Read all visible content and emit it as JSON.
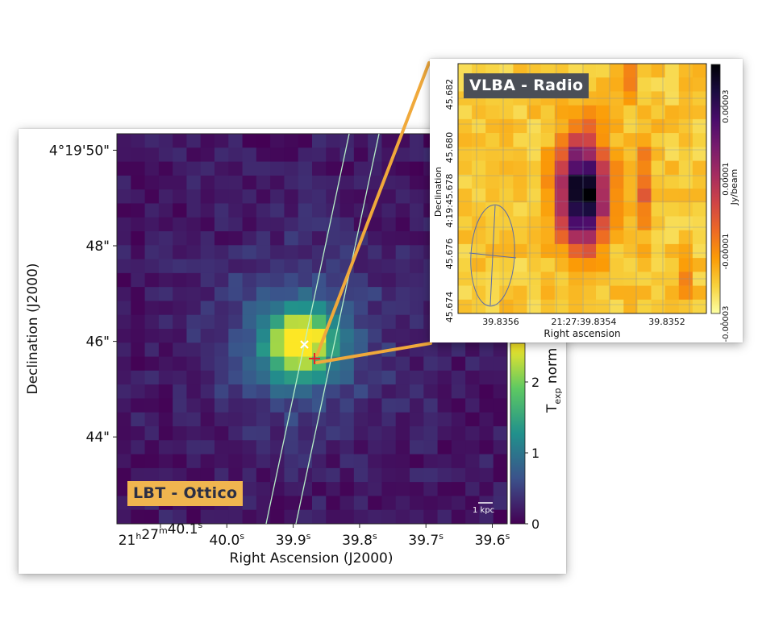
{
  "optical": {
    "tag": "LBT - Ottico",
    "y_title": "Declination (J2000)",
    "x_title": "Right Ascension (J2000)",
    "y_ticks": [
      {
        "value": 50,
        "label": "4°19'50\""
      },
      {
        "value": 48,
        "label": "48\""
      },
      {
        "value": 46,
        "label": "46\""
      },
      {
        "value": 44,
        "label": "44\""
      }
    ],
    "x_ticks": [
      {
        "value": 40.1,
        "label": "21h27m40.1s"
      },
      {
        "value": 40.0,
        "label": "40.0s"
      },
      {
        "value": 39.9,
        "label": "39.9s"
      },
      {
        "value": 39.8,
        "label": "39.8s"
      },
      {
        "value": 39.7,
        "label": "39.7s"
      },
      {
        "value": 39.6,
        "label": "39.6s"
      }
    ],
    "colorbar": {
      "label_main": "T",
      "label_sub": "exp",
      "label_rest": "norm",
      "ticks": [
        {
          "value": 0,
          "label": "0"
        },
        {
          "value": 1,
          "label": "1"
        },
        {
          "value": 2,
          "label": "2"
        }
      ],
      "colors": [
        "#440154",
        "#3b528b",
        "#21918c",
        "#5ec962",
        "#fde725"
      ]
    },
    "scale_bar": "1 kpc",
    "markers": {
      "optical_peak": "white-cross-icon",
      "radio_position": "red-plus-icon"
    }
  },
  "radio": {
    "tag": "VLBA - Radio",
    "y_title": "Declination",
    "x_title": "Right ascension",
    "y_ticks": [
      {
        "value": 45.682,
        "label": "45.682"
      },
      {
        "value": 45.68,
        "label": "45.680"
      },
      {
        "value": 45.678,
        "label": "4:19:45.678"
      },
      {
        "value": 45.676,
        "label": "45.676"
      },
      {
        "value": 45.674,
        "label": "45.674"
      }
    ],
    "x_ticks": [
      {
        "value": 39.8356,
        "label": "39.8356"
      },
      {
        "value": 39.8354,
        "label": "21:27:39.8354"
      },
      {
        "value": 39.8352,
        "label": "39.8352"
      }
    ],
    "colorbar": {
      "label": "Jy/beam",
      "ticks": [
        {
          "value": 3e-05,
          "label": "0.00003"
        },
        {
          "value": 1e-05,
          "label": "0.00001"
        },
        {
          "value": -1e-05,
          "label": "-0.00001"
        },
        {
          "value": -3e-05,
          "label": "-0.00003"
        }
      ],
      "colors": [
        "#fcffa4",
        "#f7d13d",
        "#fb9b06",
        "#ed6925",
        "#cf4446",
        "#a52c60",
        "#781c6d",
        "#4a0c6b",
        "#1b0c41",
        "#000004"
      ]
    },
    "beam": "beam-ellipse-icon"
  }
}
